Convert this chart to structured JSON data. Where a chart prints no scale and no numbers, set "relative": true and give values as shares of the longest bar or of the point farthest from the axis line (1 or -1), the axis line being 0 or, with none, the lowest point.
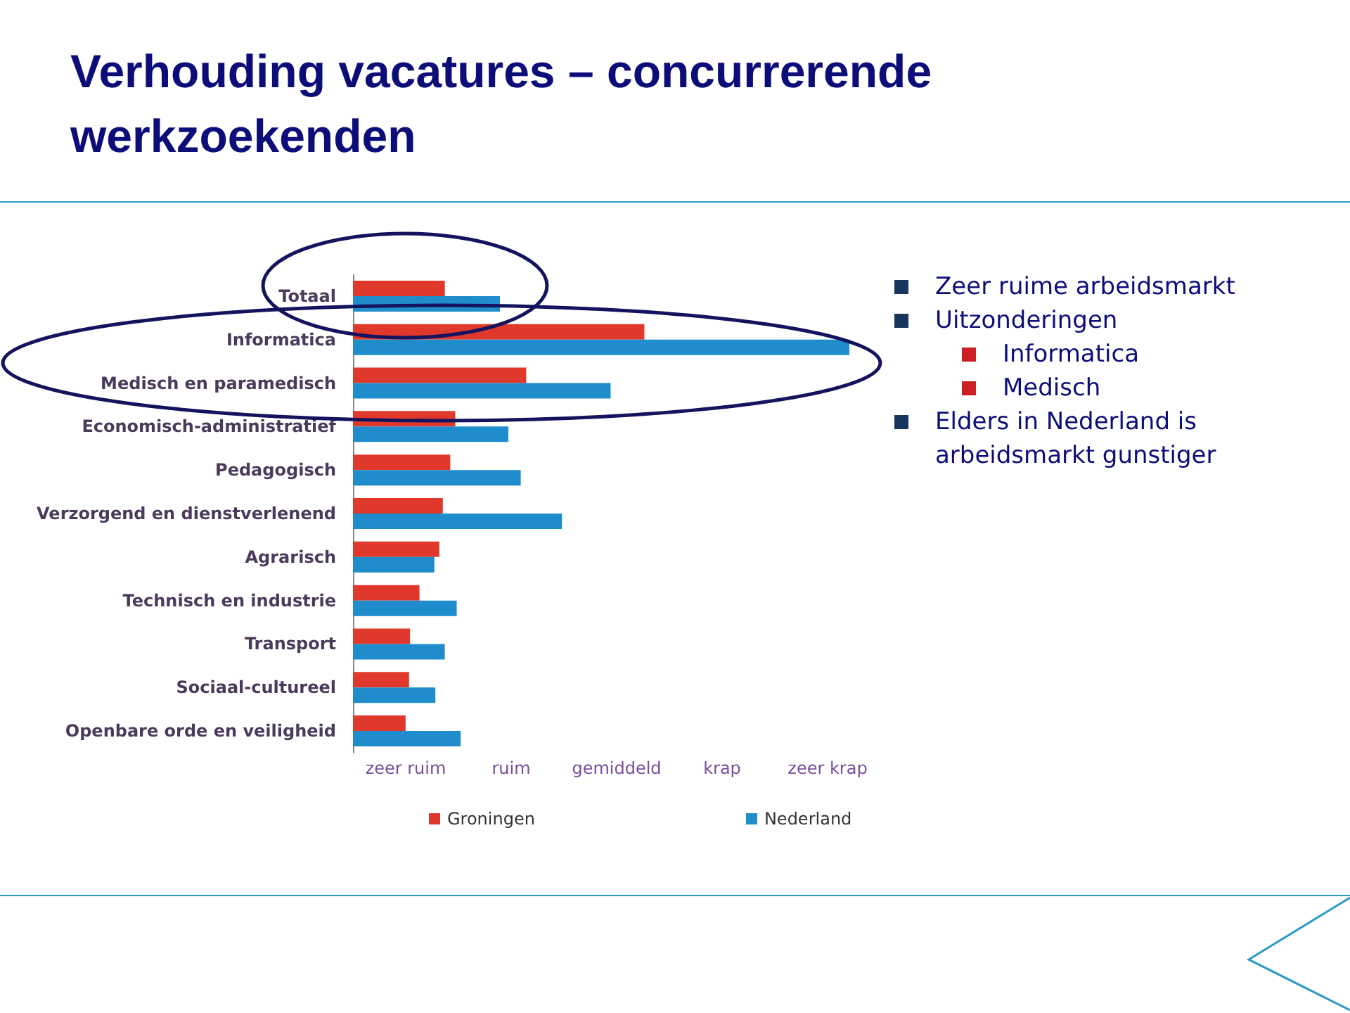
{
  "chart_data": {
    "type": "bar",
    "orientation": "horizontal",
    "relative": true,
    "title": "Verhouding vacatures – concurrerende werkzoekenden",
    "categories": [
      "Totaal",
      "Informatica",
      "Medisch en paramedisch",
      "Economisch-administratief",
      "Pedagogisch",
      "Verzorgend en dienstverlenend",
      "Agrarisch",
      "Technisch en industrie",
      "Transport",
      "Sociaal-cultureel",
      "Openbare orde en veiligheid"
    ],
    "series": [
      {
        "name": "Groningen",
        "color": "#e0392b",
        "values": [
          0.185,
          0.587,
          0.349,
          0.206,
          0.196,
          0.181,
          0.174,
          0.134,
          0.115,
          0.113,
          0.106
        ]
      },
      {
        "name": "Nederland",
        "color": "#1f8ccc",
        "values": [
          0.296,
          1,
          0.519,
          0.313,
          0.338,
          0.421,
          0.164,
          0.209,
          0.185,
          0.166,
          0.217
        ]
      }
    ],
    "legend": "bottom",
    "annotations": [
      "Zeer ruime arbeidsmarkt",
      "Uitzonderingen",
      "Informatica",
      "Medisch",
      "Elders in Nederland is arbeidsmarkt gunstiger",
      "zeer ruim",
      "ruim",
      "gemiddeld",
      "krap",
      "zeer krap"
    ]
  }
}
